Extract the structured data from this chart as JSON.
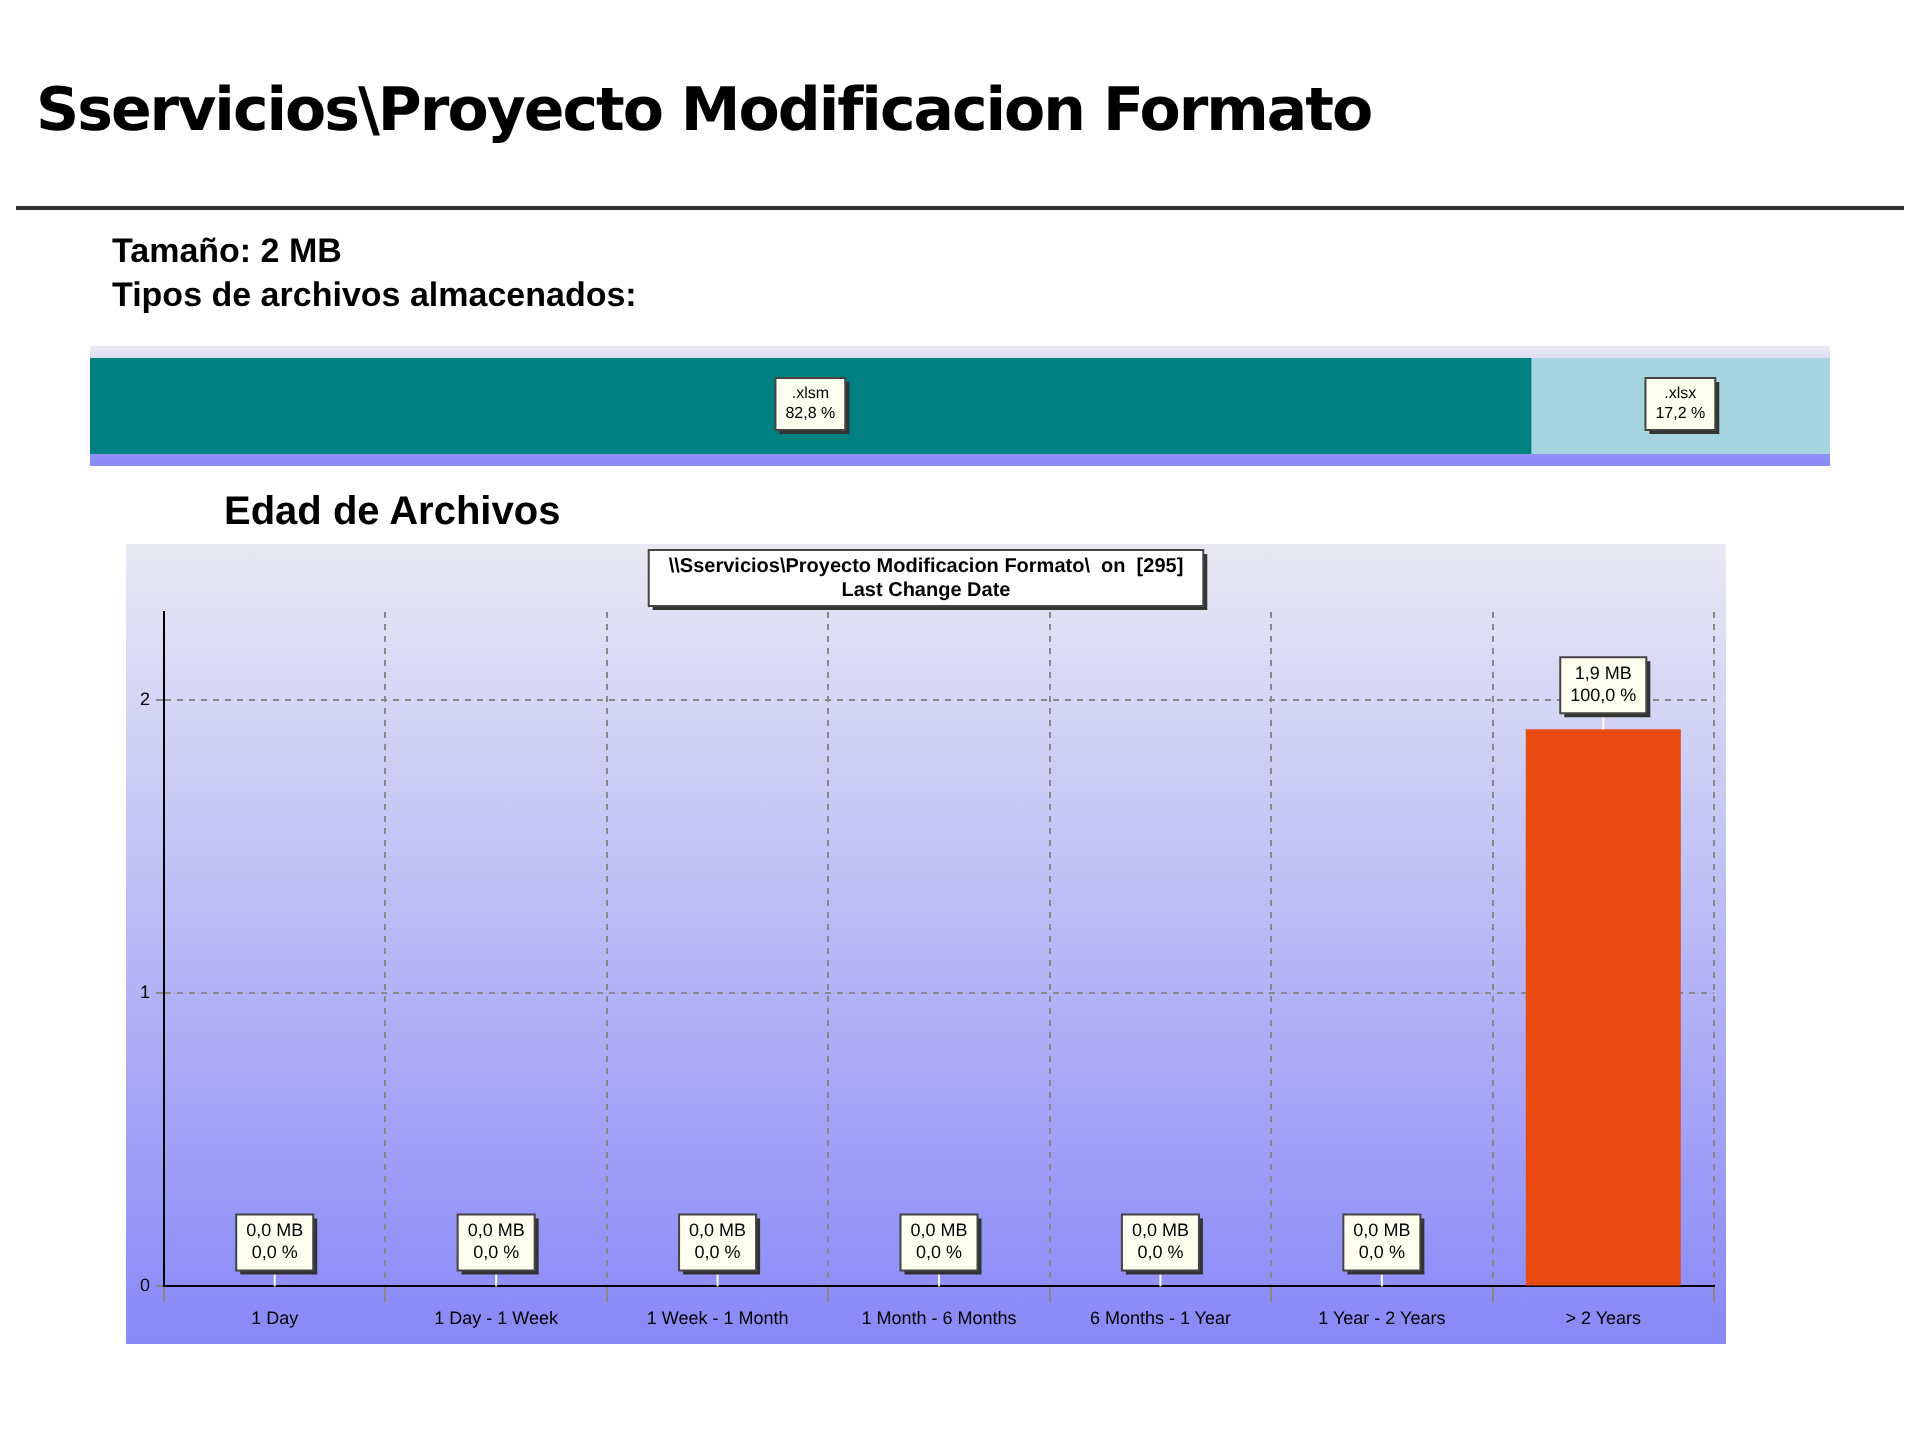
{
  "chart_data": [
    {
      "type": "bar",
      "orientation": "horizontal",
      "stacked": true,
      "title": "Sservicios\\Proyecto Modificacion Formato",
      "subtitle": "Tamaño: 2 MB",
      "annotations": [
        "Tipos de archivos almacenados:"
      ],
      "categories": [
        null
      ],
      "series": [
        {
          "name": ".xlsm",
          "color": "#008080",
          "values": [
            82.8
          ],
          "value_labels": [
            "82,8 %"
          ]
        },
        {
          "name": ".xlsx",
          "color": "#a6d4e0",
          "values": [
            17.2
          ],
          "value_labels": [
            "17,2 %"
          ]
        }
      ],
      "xlim": [
        0,
        100
      ],
      "legend": false,
      "grid": false
    },
    {
      "type": "bar",
      "title": "Edad de Archivos",
      "subtitle": "\\\\Sservicios\\Proyecto Modificacion Formato\\  on  [295]",
      "annotations": [
        "Last Change Date"
      ],
      "categories": [
        "1 Day",
        "1 Day - 1 Week",
        "1 Week - 1 Month",
        "1 Month - 6 Months",
        "6 Months - 1 Year",
        "1 Year - 2 Years",
        "> 2 Years"
      ],
      "values": [
        0,
        0,
        0,
        0,
        0,
        0,
        1.9
      ],
      "colors": [
        "#0a8a0a",
        "#1e961e",
        "#4a9010",
        "#8a9a10",
        "#a87400",
        "#a03010",
        "#e84a10"
      ],
      "value_labels": [
        "0,0 MB\n0,0 %",
        "0,0 MB\n0,0 %",
        "0,0 MB\n0,0 %",
        "0,0 MB\n0,0 %",
        "0,0 MB\n0,0 %",
        "0,0 MB\n0,0 %",
        "1,9 MB\n100,0 %"
      ],
      "ylim": [
        0,
        2.3
      ],
      "yticks": [
        0,
        1,
        2
      ],
      "grid": true,
      "legend": false,
      "line_style": "dashed"
    }
  ]
}
